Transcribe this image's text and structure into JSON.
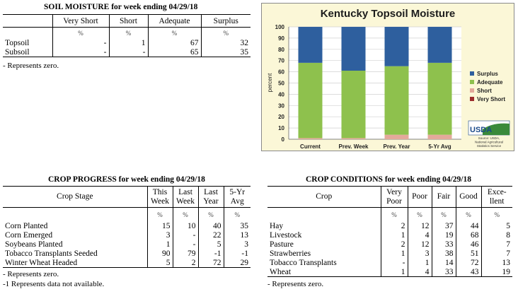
{
  "soil": {
    "title": "SOIL MOISTURE for week ending 04/29/18",
    "headers": [
      "Very Short",
      "Short",
      "Adequate",
      "Surplus"
    ],
    "pct": "%",
    "rows": [
      {
        "label": "Topsoil",
        "values": [
          "-",
          "1",
          "67",
          "32"
        ]
      },
      {
        "label": "Subsoil",
        "values": [
          "-",
          "-",
          "65",
          "35"
        ]
      }
    ],
    "note": "- Represents zero."
  },
  "chart_data": {
    "type": "bar",
    "title": "Kentucky Topsoil Moisture",
    "ylabel": "percent",
    "categories": [
      "Current",
      "Prev. Week",
      "Prev. Year",
      "5-Yr Avg"
    ],
    "ylim": [
      0,
      100
    ],
    "yticks": [
      "0",
      "10",
      "20",
      "30",
      "40",
      "50",
      "60",
      "70",
      "80",
      "90",
      "100"
    ],
    "stacked": true,
    "series": [
      {
        "name": "Very Short",
        "color": "#9b2b2b",
        "values": [
          0,
          0,
          0,
          0
        ]
      },
      {
        "name": "Short",
        "color": "#e3a99b",
        "values": [
          1,
          1,
          4,
          4
        ]
      },
      {
        "name": "Adequate",
        "color": "#8ec14d",
        "values": [
          67,
          60,
          61,
          64
        ]
      },
      {
        "name": "Surplus",
        "color": "#2e5f9e",
        "values": [
          32,
          39,
          35,
          32
        ]
      }
    ],
    "legend_order": [
      "Surplus",
      "Adequate",
      "Short",
      "Very Short"
    ],
    "legend_position": "right",
    "logo_text": "USDA",
    "source": [
      "Source: USDA,",
      "National Agricultural",
      "Statistics Service"
    ]
  },
  "progress": {
    "title": "CROP PROGRESS for week ending 04/29/18",
    "headers": {
      "stage": "Crop Stage",
      "c1": [
        "This",
        "Week"
      ],
      "c2": [
        "Last",
        "Week"
      ],
      "c3": [
        "Last",
        "Year"
      ],
      "c4": [
        "5-Yr",
        "Avg"
      ]
    },
    "pct": "%",
    "rows": [
      {
        "label": "Corn Planted",
        "values": [
          "15",
          "10",
          "40",
          "35"
        ]
      },
      {
        "label": "Corn Emerged",
        "values": [
          "3",
          "-",
          "22",
          "13"
        ]
      },
      {
        "label": "Soybeans Planted",
        "values": [
          "1",
          "-",
          "5",
          "3"
        ]
      },
      {
        "label": "Tobacco Transplants Seeded",
        "values": [
          "90",
          "79",
          "-1",
          "-1"
        ]
      },
      {
        "label": "Winter Wheat Headed",
        "values": [
          "5",
          "2",
          "72",
          "29"
        ]
      }
    ],
    "note1": "- Represents zero.",
    "note2": "-1 Represents data not available."
  },
  "conditions": {
    "title": "CROP CONDITIONS for week ending 04/29/18",
    "headers": {
      "crop": "Crop",
      "c1": [
        "Very",
        "Poor"
      ],
      "c2": [
        "Poor"
      ],
      "c3": [
        "Fair"
      ],
      "c4": [
        "Good"
      ],
      "c5": [
        "Exce-",
        "llent"
      ]
    },
    "pct": "%",
    "rows": [
      {
        "label": "Hay",
        "values": [
          "2",
          "12",
          "37",
          "44",
          "5"
        ]
      },
      {
        "label": "Livestock",
        "values": [
          "1",
          "4",
          "19",
          "68",
          "8"
        ]
      },
      {
        "label": "Pasture",
        "values": [
          "2",
          "12",
          "33",
          "46",
          "7"
        ]
      },
      {
        "label": "Strawberries",
        "values": [
          "1",
          "3",
          "38",
          "51",
          "7"
        ]
      },
      {
        "label": "Tobacco Transplants",
        "values": [
          "-",
          "1",
          "14",
          "72",
          "13"
        ]
      },
      {
        "label": "Wheat",
        "values": [
          "1",
          "4",
          "33",
          "43",
          "19"
        ]
      }
    ],
    "note": "- Represents zero."
  }
}
